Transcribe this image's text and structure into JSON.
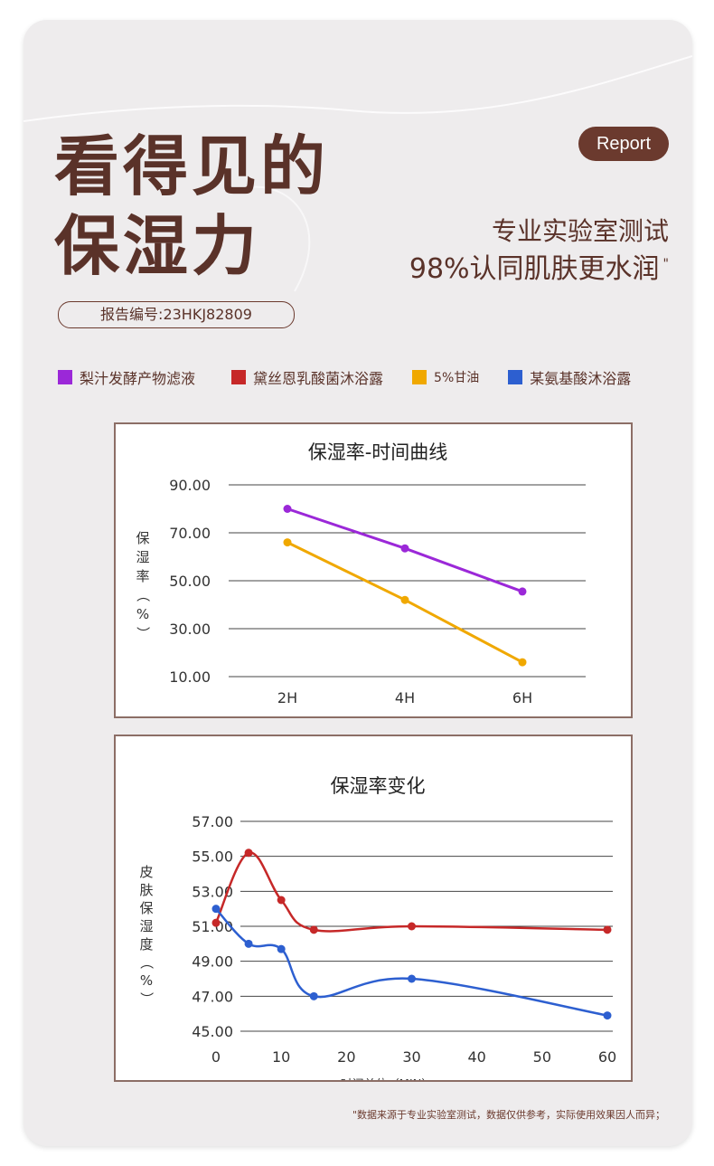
{
  "headline": {
    "line1": "看得见的",
    "line2": "保湿力"
  },
  "badge": "Report",
  "subtitle": {
    "line1": "专业实验室测试",
    "line2": "98%认同肌肤更水润",
    "mark": "\""
  },
  "report_number": "报告编号:23HKJ82809",
  "legend": [
    {
      "label": "梨汁发酵产物滤液",
      "color": "#9b28d8"
    },
    {
      "label": "黛丝恩乳酸菌沐浴露",
      "color": "#c62828"
    },
    {
      "label": "5%甘油",
      "color": "#f0a800"
    },
    {
      "label": "某氨基酸沐浴露",
      "color": "#2d5fd0"
    }
  ],
  "footnote": "\"数据来源于专业实验室测试，数据仅供参考，实际使用效果因人而异；",
  "chart_data": [
    {
      "type": "line",
      "title": "保湿率-时间曲线",
      "ylabel": "保湿率（%）",
      "xlabel": "",
      "categories": [
        "2H",
        "4H",
        "6H"
      ],
      "yticks": [
        "90.00",
        "70.00",
        "50.00",
        "30.00",
        "10.00"
      ],
      "ylim": [
        10,
        90
      ],
      "grid": true,
      "series": [
        {
          "legend_index": 0,
          "color": "#9b28d8",
          "values": [
            80,
            63.5,
            45.5
          ]
        },
        {
          "legend_index": 2,
          "color": "#f0a800",
          "values": [
            66,
            42,
            16
          ]
        }
      ]
    },
    {
      "type": "line",
      "title": "保湿率变化",
      "ylabel": "皮肤保湿度（%）",
      "xlabel": "时间单位（MIN）",
      "xticks": [
        "0",
        "10",
        "20",
        "30",
        "40",
        "50",
        "60"
      ],
      "xlim": [
        0,
        60
      ],
      "yticks": [
        "57.00",
        "55.00",
        "53.00",
        "51.00",
        "49.00",
        "47.00",
        "45.00"
      ],
      "ylim": [
        45,
        57
      ],
      "grid": true,
      "smooth": true,
      "series": [
        {
          "legend_index": 1,
          "color": "#c62828",
          "points": [
            [
              0,
              51.2
            ],
            [
              5,
              55.2
            ],
            [
              10,
              52.5
            ],
            [
              15,
              50.8
            ],
            [
              30,
              51.0
            ],
            [
              60,
              50.8
            ]
          ]
        },
        {
          "legend_index": 3,
          "color": "#2d5fd0",
          "points": [
            [
              0,
              52.0
            ],
            [
              5,
              50.0
            ],
            [
              10,
              49.7
            ],
            [
              15,
              47.0
            ],
            [
              30,
              48.0
            ],
            [
              60,
              45.9
            ]
          ]
        }
      ]
    }
  ]
}
